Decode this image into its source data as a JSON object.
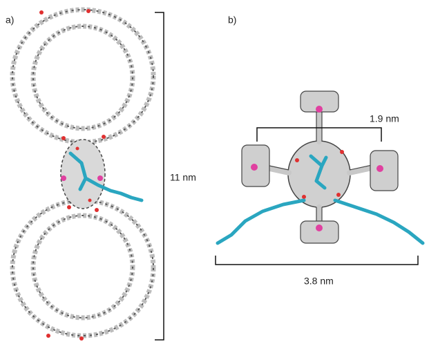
{
  "panel_a": {
    "label": "a)",
    "scale": "11 nm"
  },
  "panel_b": {
    "label": "b)",
    "inner_scale": "1.9 nm",
    "outer_scale": "3.8 nm"
  }
}
